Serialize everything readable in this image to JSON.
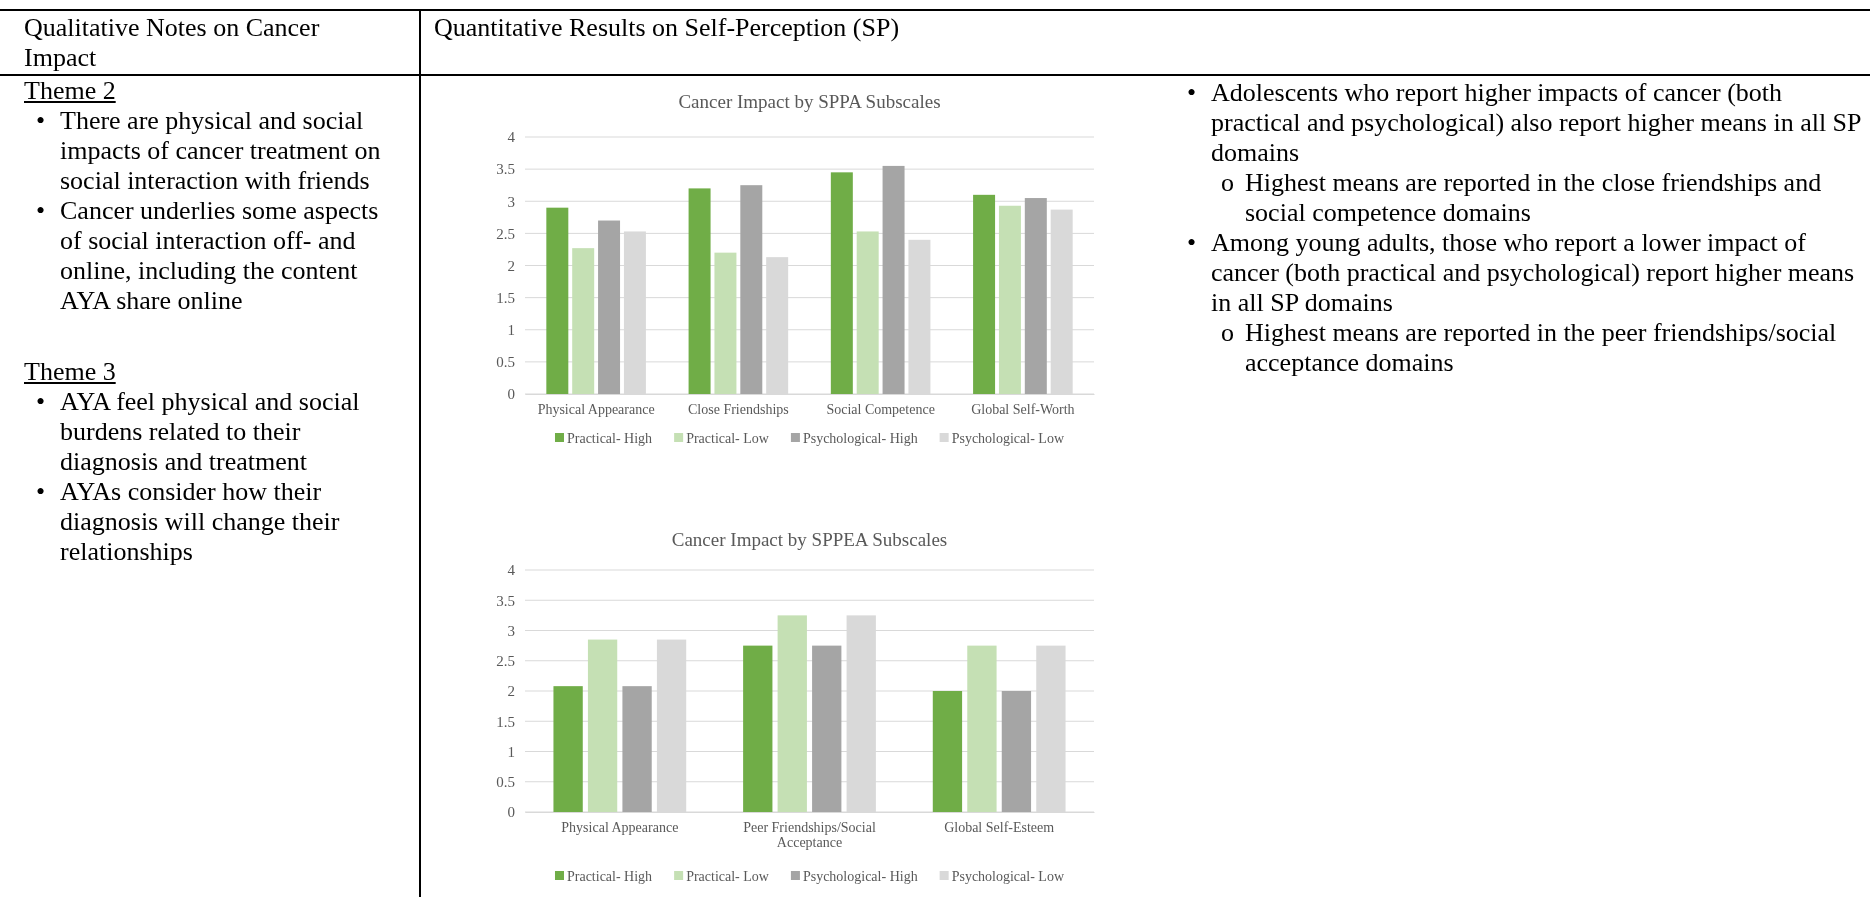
{
  "chart_data": [
    {
      "type": "other",
      "title": "Qualitative Notes on Cancer Impact"
    },
    {
      "type": "other",
      "title": "Quantitative Results on Self-Perception (SP)"
    },
    {
      "type": "other",
      "title": "Theme 2",
      "annotations": [
        "• There are physical and social impacts of cancer treatment on social interaction with friends",
        "• Cancer underlies some aspects of social interaction off- and online, including the content AYA share online"
      ]
    },
    {
      "type": "other",
      "title": "Theme 3",
      "annotations": [
        "• AYA feel physical and social burdens related to their diagnosis and treatment",
        "• AYAs consider how their diagnosis will change their relationships"
      ]
    },
    {
      "type": "bar",
      "title": "Cancer Impact by SPPA Subscales",
      "categories": [
        "Physical Appearance",
        "Close Friendships",
        "Social Competence",
        "Global Self-Worth"
      ],
      "series": [
        {
          "name": "Practical- High",
          "color": "#70ad47",
          "values": [
            2.9,
            3.2,
            3.45,
            3.1
          ]
        },
        {
          "name": "Practical- Low",
          "color": "#c5e0b4",
          "values": [
            2.27,
            2.2,
            2.53,
            2.93
          ]
        },
        {
          "name": "Psychological- High",
          "color": "#a5a5a5",
          "values": [
            2.7,
            3.25,
            3.55,
            3.05
          ]
        },
        {
          "name": "Psychological- Low",
          "color": "#d9d9d9",
          "values": [
            2.53,
            2.13,
            2.4,
            2.87
          ]
        }
      ],
      "ylim": [
        0,
        4
      ],
      "yticks": [
        0,
        0.5,
        1,
        1.5,
        2,
        2.5,
        3,
        3.5,
        4
      ],
      "grid": "y",
      "legend": "bottom"
    },
    {
      "type": "bar",
      "title": "Cancer Impact by SPPEA Subscales",
      "categories": [
        "Physical Appearance",
        "Peer Friendships/Social Acceptance",
        "Global Self-Esteem"
      ],
      "series": [
        {
          "name": "Practical- High",
          "color": "#70ad47",
          "values": [
            2.08,
            2.75,
            2.0
          ]
        },
        {
          "name": "Practical- Low",
          "color": "#c5e0b4",
          "values": [
            2.85,
            3.25,
            2.75
          ]
        },
        {
          "name": "Psychological- High",
          "color": "#a5a5a5",
          "values": [
            2.08,
            2.75,
            2.0
          ]
        },
        {
          "name": "Psychological- Low",
          "color": "#d9d9d9",
          "values": [
            2.85,
            3.25,
            2.75
          ]
        }
      ],
      "ylim": [
        0,
        4
      ],
      "yticks": [
        0,
        0.5,
        1,
        1.5,
        2,
        2.5,
        3,
        3.5,
        4
      ],
      "grid": "y",
      "legend": "bottom"
    },
    {
      "type": "other",
      "annotations": [
        "• Adolescents who report higher impacts of cancer (both practical and psychological) also report higher means in all SP domains",
        "o Highest means are reported in the close friendships and social competence domains",
        "• Among young adults, those who report a lower impact of cancer (both practical and psychological) report higher means in all SP domains",
        "o Highest means are reported in the peer friendships/social acceptance domains"
      ]
    }
  ]
}
